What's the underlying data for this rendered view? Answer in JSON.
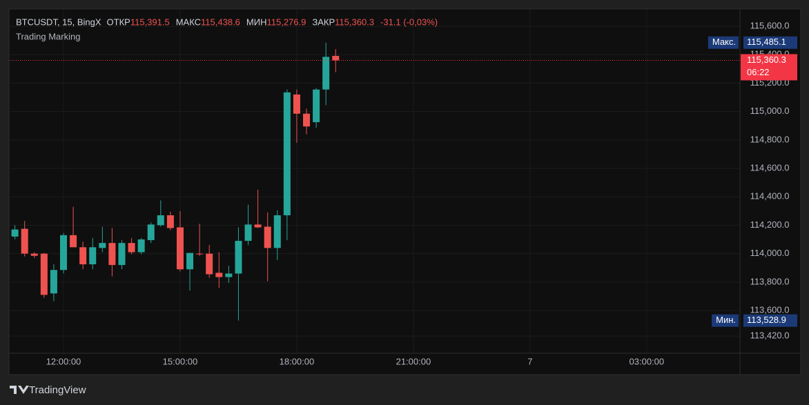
{
  "chart_data": {
    "type": "candlestick",
    "header": {
      "symbol": "BTCUSDT, 15, BingX",
      "open_label": "ОТКР",
      "open": "115,391.5",
      "high_label": "МАКС",
      "high": "115,438.6",
      "low_label": "МИН",
      "low": "115,276.9",
      "close_label": "ЗАКР",
      "close": "115,360.3",
      "change": "-31.1 (-0,03%)",
      "indicator": "Trading Marking"
    },
    "x": [
      10.75,
      11,
      11.25,
      11.5,
      11.75,
      12,
      12.25,
      12.5,
      12.75,
      13,
      13.25,
      13.5,
      13.75,
      14,
      14.25,
      14.5,
      14.75,
      15,
      15.25,
      15.5,
      15.75,
      16,
      16.25,
      16.5,
      16.75,
      17,
      17.25,
      17.5,
      17.75,
      18,
      18.25,
      18.5,
      18.75,
      19
    ],
    "open": [
      114120,
      114175,
      114000,
      114000,
      113720,
      113885,
      114130,
      114045,
      113925,
      114040,
      114075,
      113920,
      114075,
      114010,
      114095,
      114200,
      114270,
      114185,
      113890,
      114000,
      114000,
      113865,
      113835,
      113860,
      114090,
      114205,
      114190,
      114040,
      114270,
      115120,
      114985,
      114925,
      115155,
      115391.5
    ],
    "high": [
      114200,
      114230,
      114010,
      114005,
      113925,
      114145,
      114330,
      114085,
      114110,
      114190,
      114180,
      114095,
      114110,
      114110,
      114220,
      114375,
      114295,
      114300,
      114005,
      114210,
      114060,
      114010,
      113915,
      114185,
      114345,
      114450,
      114290,
      114305,
      115155,
      115155,
      115020,
      115165,
      115485.1,
      115438.6
    ],
    "low": [
      114100,
      113980,
      113970,
      113690,
      113665,
      113860,
      114045,
      113890,
      113890,
      114010,
      113840,
      113890,
      113995,
      113995,
      114075,
      114190,
      114165,
      113875,
      113740,
      113985,
      113830,
      113760,
      113795,
      113528.9,
      114060,
      114180,
      113805,
      113955,
      114095,
      114780,
      114840,
      114885,
      115045,
      115276.9
    ],
    "close": [
      114170,
      114000,
      113985,
      113710,
      113885,
      114130,
      114045,
      113925,
      114045,
      114075,
      113920,
      114075,
      114010,
      114100,
      114205,
      114270,
      114180,
      113890,
      114005,
      113995,
      113855,
      113835,
      113860,
      114090,
      114205,
      114185,
      114040,
      114270,
      115135,
      114985,
      114895,
      115155,
      115385,
      115360.3
    ],
    "up_color": "#26a69a",
    "down_color": "#ef5350",
    "xlim": [
      10.615,
      29.4
    ],
    "xticks": [
      {
        "value": 12,
        "label": "12:00:00"
      },
      {
        "value": 15,
        "label": "15:00:00"
      },
      {
        "value": 18,
        "label": "18:00:00"
      },
      {
        "value": 21,
        "label": "21:00:00"
      },
      {
        "value": 24,
        "label": "7"
      },
      {
        "value": 27,
        "label": "03:00:00"
      }
    ],
    "ylim": [
      113299,
      115717
    ],
    "yticks": [
      {
        "value": 115600,
        "label": "115,600.0"
      },
      {
        "value": 115400,
        "label": "115,400.0"
      },
      {
        "value": 115200,
        "label": "115,200.0"
      },
      {
        "value": 115000,
        "label": "115,000.0"
      },
      {
        "value": 114800,
        "label": "114,800.0"
      },
      {
        "value": 114600,
        "label": "114,600.0"
      },
      {
        "value": 114400,
        "label": "114,400.0"
      },
      {
        "value": 114200,
        "label": "114,200.0"
      },
      {
        "value": 114000,
        "label": "114,000.0"
      },
      {
        "value": 113800,
        "label": "113,800.0"
      },
      {
        "value": 113600,
        "label": "113,600.0"
      },
      {
        "value": 113420,
        "label": "113,420.0"
      }
    ],
    "grid": true,
    "max_marker": {
      "label": "Макс.",
      "value": 115485.1,
      "text": "115,485.1",
      "color": "#1c3a78"
    },
    "min_marker": {
      "label": "Мин.",
      "value": 113528.9,
      "text": "113,528.9",
      "color": "#1c3a78"
    },
    "price_line": {
      "value": 115360.3,
      "text": "115,360.3",
      "timer": "06:22",
      "color": "#f23645"
    },
    "brand": "TradingView"
  }
}
